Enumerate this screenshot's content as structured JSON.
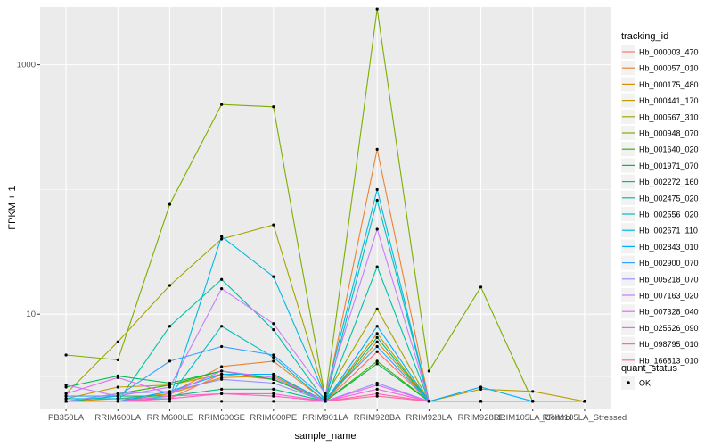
{
  "chart_data": {
    "type": "line",
    "xlabel": "sample_name",
    "ylabel": "FPKM + 1",
    "y_scale": "log10",
    "ylim": [
      1.75,
      2900
    ],
    "y_ticks": [
      10,
      1000
    ],
    "y_tick_labels": [
      "10",
      "1000"
    ],
    "grid": true,
    "legend_position": "right",
    "categories": [
      "PB350LA",
      "RRIM600LA",
      "RRIM600LE",
      "RRIM600SE",
      "RRIM600PE",
      "RRIM901LA",
      "RRIM928BA",
      "RRIM928LA",
      "RRIM928LE",
      "RRIM105LA_Control",
      "RRIM105LA_Stressed"
    ],
    "series": [
      {
        "name": "Hb_000003_470",
        "color": "#F8766D",
        "values": [
          2,
          2,
          2.1,
          3.3,
          3,
          2,
          5,
          2,
          2,
          2,
          2
        ]
      },
      {
        "name": "Hb_000057_010",
        "color": "#EA8331",
        "values": [
          2,
          2,
          2.3,
          3.8,
          4.2,
          2,
          210,
          2,
          2,
          2,
          2
        ]
      },
      {
        "name": "Hb_000175_480",
        "color": "#D89000",
        "values": [
          2,
          2.1,
          2.3,
          3.1,
          3.2,
          2,
          6,
          2,
          2,
          2,
          2
        ]
      },
      {
        "name": "Hb_000441_170",
        "color": "#C09B00",
        "values": [
          2.1,
          2.6,
          2.7,
          3.3,
          3.3,
          2,
          7,
          2,
          2.5,
          2.4,
          2
        ]
      },
      {
        "name": "Hb_000567_310",
        "color": "#A3A500",
        "values": [
          2.3,
          6,
          17,
          40,
          52,
          2.2,
          11,
          2,
          2,
          2,
          2
        ]
      },
      {
        "name": "Hb_000948_070",
        "color": "#7CAE00",
        "values": [
          4.7,
          4.3,
          76,
          480,
          460,
          2.1,
          2800,
          3.5,
          16.5,
          2,
          2
        ]
      },
      {
        "name": "Hb_001640_020",
        "color": "#39B600",
        "values": [
          2,
          2.3,
          2.7,
          3.5,
          3,
          2,
          4.2,
          2,
          2,
          2,
          2
        ]
      },
      {
        "name": "Hb_001971_070",
        "color": "#00BB4E",
        "values": [
          2.6,
          3.2,
          2.8,
          3.5,
          3,
          2,
          4,
          2,
          2,
          2,
          2
        ]
      },
      {
        "name": "Hb_002272_160",
        "color": "#00BF7D",
        "values": [
          2,
          2.2,
          2.2,
          2.5,
          2.5,
          2,
          6.5,
          2,
          2,
          2,
          2
        ]
      },
      {
        "name": "Hb_002475_020",
        "color": "#00C1A3",
        "values": [
          2,
          2,
          8,
          19,
          7.5,
          2,
          24,
          2,
          2,
          2,
          2
        ]
      },
      {
        "name": "Hb_002556_020",
        "color": "#00BFC4",
        "values": [
          2,
          2,
          2.2,
          8,
          4.5,
          2,
          82,
          2,
          2,
          2,
          2
        ]
      },
      {
        "name": "Hb_002671_110",
        "color": "#00BAE0",
        "values": [
          2.1,
          2.1,
          2.1,
          42,
          20,
          2.2,
          100,
          2,
          2,
          2,
          2
        ]
      },
      {
        "name": "Hb_002843_010",
        "color": "#00B0F6",
        "values": [
          2,
          2,
          2.4,
          3.3,
          3.3,
          2,
          8,
          2,
          2.6,
          2,
          2
        ]
      },
      {
        "name": "Hb_002900_070",
        "color": "#35A2FF",
        "values": [
          2.2,
          2.2,
          4.2,
          5.5,
          4.7,
          2.1,
          5.5,
          2,
          2,
          2,
          2
        ]
      },
      {
        "name": "Hb_005218_070",
        "color": "#9590FF",
        "values": [
          2,
          2.3,
          2.4,
          3,
          2.8,
          2,
          2.8,
          2,
          2,
          2,
          2
        ]
      },
      {
        "name": "Hb_007163_020",
        "color": "#C77CFF",
        "values": [
          2.7,
          2.2,
          2.6,
          16,
          8.4,
          2.3,
          48,
          2,
          2,
          2,
          2
        ]
      },
      {
        "name": "Hb_007328_040",
        "color": "#E76BF3",
        "values": [
          2.3,
          3.1,
          2.3,
          3.5,
          3.1,
          2,
          2.7,
          2,
          2,
          2,
          2
        ]
      },
      {
        "name": "Hb_025526_090",
        "color": "#FA62DB",
        "values": [
          2,
          2,
          2.2,
          2.3,
          2.3,
          2,
          2.5,
          2,
          2,
          2,
          2
        ]
      },
      {
        "name": "Hb_098795_010",
        "color": "#FF62BC",
        "values": [
          2,
          2,
          2.1,
          2.3,
          2.2,
          2,
          2.3,
          2,
          2,
          2,
          2
        ]
      },
      {
        "name": "Hb_166813_010",
        "color": "#FF6C91",
        "values": [
          2,
          2,
          2,
          2,
          2,
          2,
          2.2,
          2,
          2,
          2,
          2
        ]
      }
    ],
    "legend": {
      "title": "tracking_id",
      "shape_title": "quant_status",
      "shape_items": [
        "OK"
      ]
    }
  }
}
